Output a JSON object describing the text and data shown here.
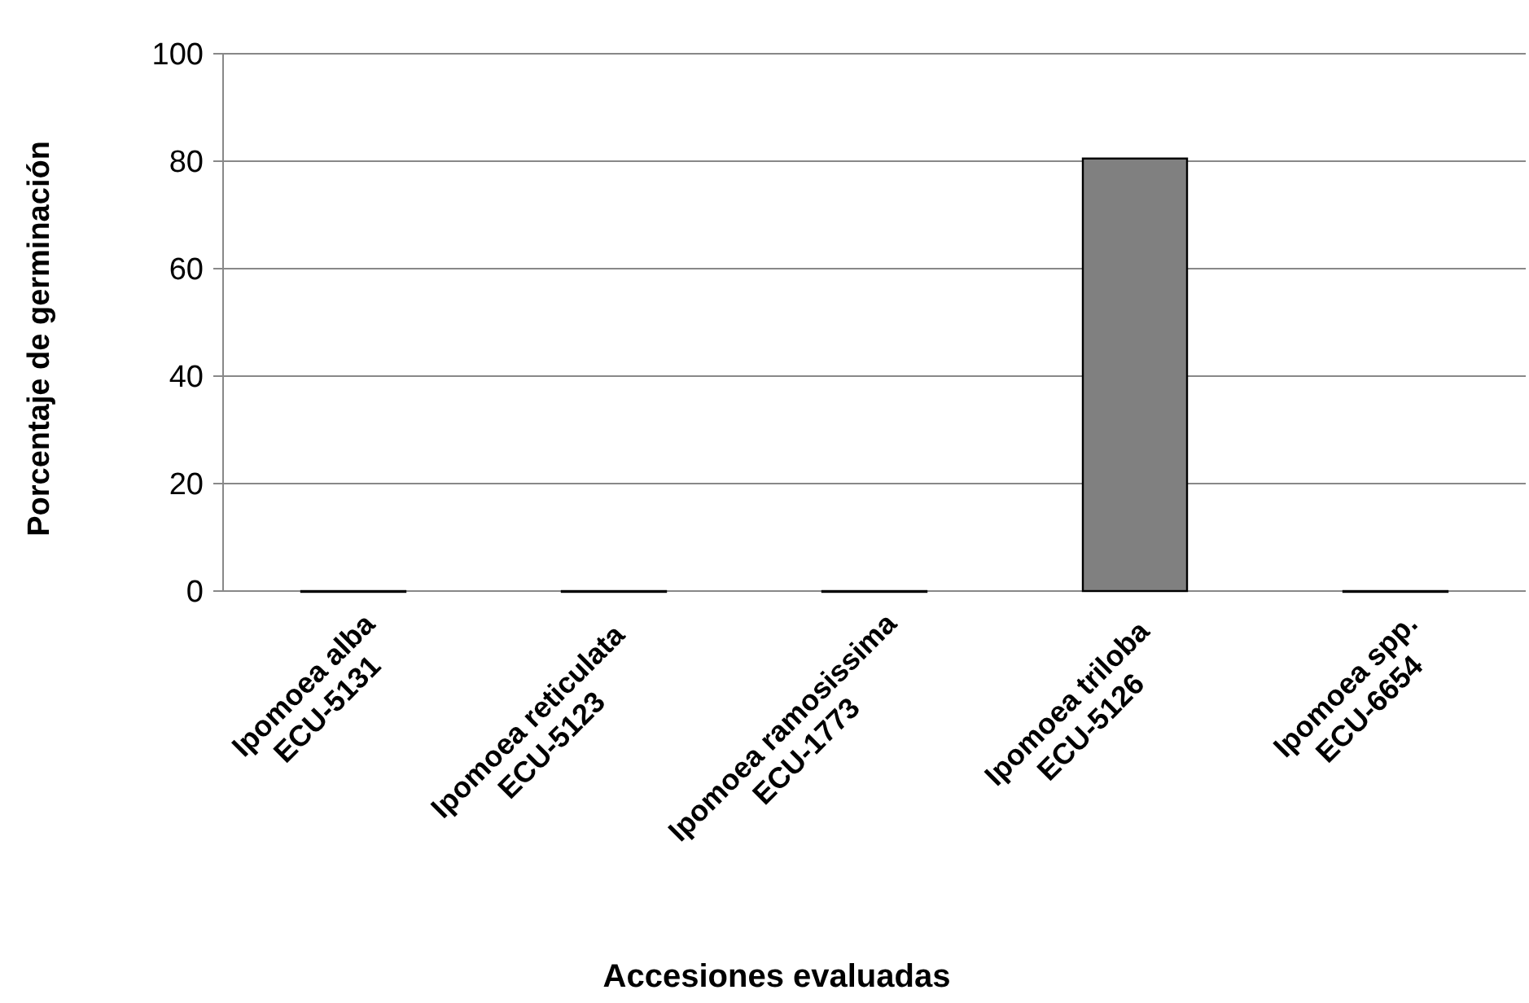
{
  "chart_data": {
    "type": "bar",
    "xlabel": "Accesiones evaluadas",
    "ylabel": "Porcentaje de germinación",
    "categories": [
      "Ipomoea alba\nECU-5131",
      "Ipomoea reticulata\nECU-5123",
      "Ipomoea ramosissima\nECU-1773",
      "Ipomoea triloba\nECU-5126",
      "Ipomoea spp.\nECU-6654"
    ],
    "values": [
      0,
      0,
      0,
      80.5,
      0
    ],
    "color": "#808080",
    "ylim": [
      0,
      100
    ],
    "yticks": [
      0,
      20,
      40,
      60,
      80,
      100
    ],
    "grid": "y"
  }
}
